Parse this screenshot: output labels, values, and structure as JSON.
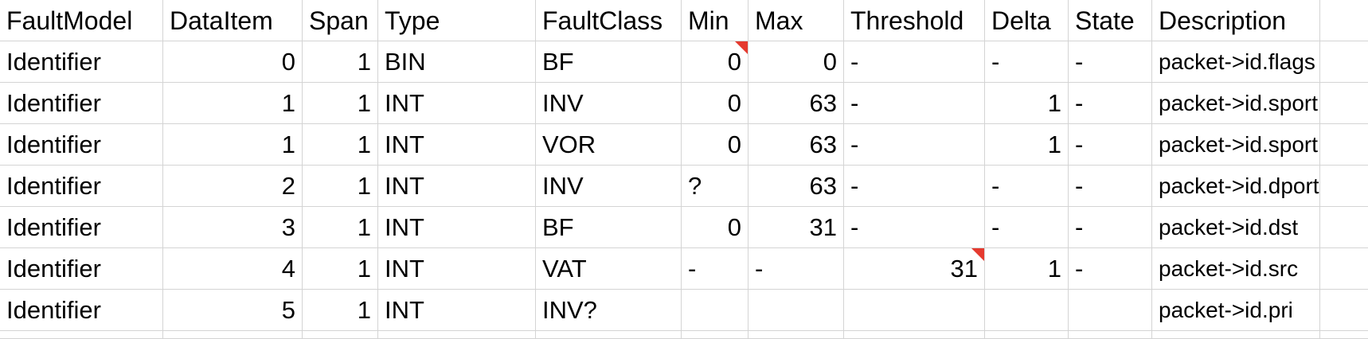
{
  "sheet": {
    "headers": [
      "FaultModel",
      "DataItem",
      "Span",
      "Type",
      "FaultClass",
      "Min",
      "Max",
      "Threshold",
      "Delta",
      "State",
      "Description",
      ""
    ],
    "rows": [
      [
        "Identifier",
        "0",
        "1",
        "BIN",
        "BF",
        "0",
        "0",
        "-",
        "-",
        "-",
        "packet->id.flags",
        ""
      ],
      [
        "Identifier",
        "1",
        "1",
        "INT",
        "INV",
        "0",
        "63",
        "-",
        "1",
        "-",
        "packet->id.sport",
        ""
      ],
      [
        "Identifier",
        "1",
        "1",
        "INT",
        "VOR",
        "0",
        "63",
        "-",
        "1",
        "-",
        "packet->id.sport",
        ""
      ],
      [
        "Identifier",
        "2",
        "1",
        "INT",
        "INV",
        "?",
        "63",
        "-",
        "-",
        "-",
        "packet->id.dport",
        ""
      ],
      [
        "Identifier",
        "3",
        "1",
        "INT",
        "BF",
        "0",
        "31",
        "-",
        "-",
        "-",
        "packet->id.dst",
        ""
      ],
      [
        "Identifier",
        "4",
        "1",
        "INT",
        "VAT",
        "-",
        "-",
        "31",
        "1",
        "-",
        "packet->id.src",
        ""
      ],
      [
        "Identifier",
        "5",
        "1",
        "INT",
        "INV?",
        "",
        "",
        "",
        "",
        "",
        "packet->id.pri",
        ""
      ]
    ]
  },
  "colors": {
    "gridline": "#d4d4d4",
    "comment_marker": "#e53a2f"
  }
}
